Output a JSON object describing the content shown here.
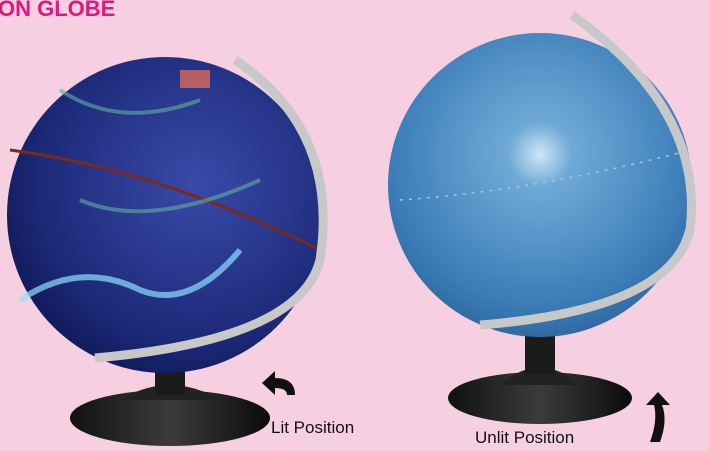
{
  "header": {
    "title": "ON GLOBE"
  },
  "globes": [
    {
      "caption": "Lit Position"
    },
    {
      "caption": "Unlit Position"
    }
  ]
}
